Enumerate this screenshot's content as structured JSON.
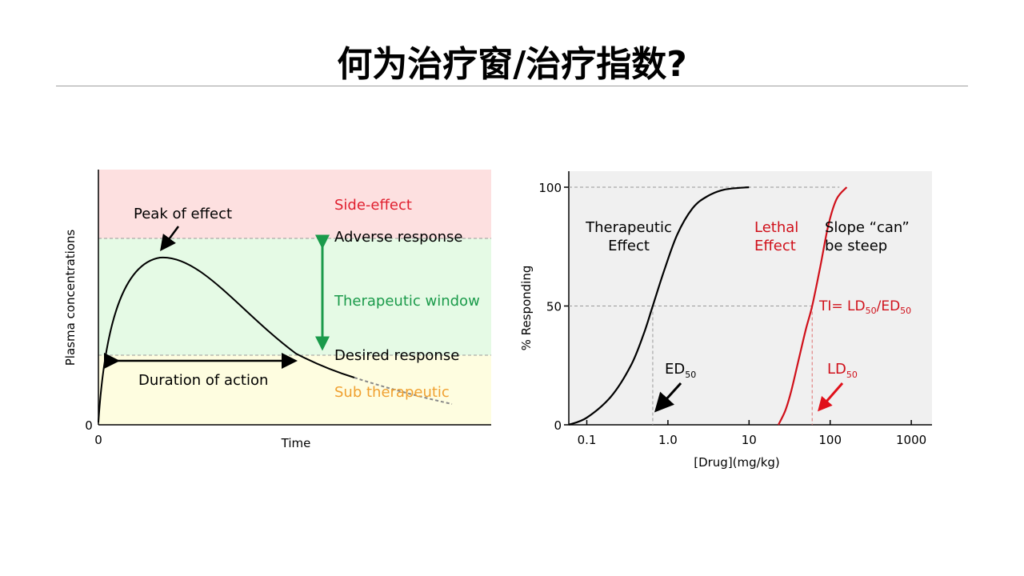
{
  "slide": {
    "title": "何为治疗窗/治疗指数?"
  },
  "left_diagram": {
    "y_axis_label": "Plasma concentrations",
    "x_axis_label": "Time",
    "origin_x_label": "0",
    "origin_y_label": "0",
    "zones": {
      "side_effect": "Side-effect",
      "adverse": "Adverse response",
      "window": "Therapeutic window",
      "desired": "Desired response",
      "sub": "Sub therapeutic"
    },
    "peak_label": "Peak of effect",
    "duration_label": "Duration of action",
    "colors": {
      "side_effect_zone": "#fde0e0",
      "window_zone": "#e5fae5",
      "sub_zone": "#fefde0",
      "side_effect_text": "#e0202f",
      "window_text": "#1a9a4a",
      "sub_text": "#f0a030",
      "window_arrow": "#1a9a4a"
    }
  },
  "chart_data": {
    "type": "line",
    "xlabel": "[Drug](mg/kg)",
    "ylabel": "% Responding",
    "x_scale": "log",
    "xlim": [
      0.06,
      1800
    ],
    "ylim": [
      0,
      100
    ],
    "x_ticks": [
      "0.1",
      "1.0",
      "10",
      "100",
      "1000"
    ],
    "y_ticks": [
      "0",
      "50",
      "100"
    ],
    "background": "#f0f0f0",
    "series": [
      {
        "name": "Therapeutic Effect",
        "color": "#000000",
        "x": [
          0.06,
          0.1,
          0.2,
          0.35,
          0.5,
          0.65,
          0.9,
          1.3,
          2.0,
          3.0,
          5.0,
          10.0
        ],
        "y": [
          0,
          3,
          12,
          25,
          38,
          50,
          65,
          80,
          91,
          96,
          99,
          100
        ]
      },
      {
        "name": "Lethal Effect",
        "color": "#d0101a",
        "x": [
          23,
          28,
          33,
          40,
          50,
          60,
          75,
          95,
          120,
          160
        ],
        "y": [
          0,
          6,
          14,
          26,
          40,
          50,
          66,
          84,
          95,
          100
        ]
      }
    ],
    "labels": {
      "therapeutic_1": "Therapeutic",
      "therapeutic_2": "Effect",
      "lethal_1": "Lethal",
      "lethal_2": "Effect",
      "slope_1": "Slope “can”",
      "slope_2": "be steep",
      "ti_prefix": "TI= LD",
      "ti_sub1": "50",
      "ti_mid": "/ED",
      "ti_sub2": "50",
      "ed": "ED",
      "ed_sub": "50",
      "ld": "LD",
      "ld_sub": "50"
    }
  }
}
